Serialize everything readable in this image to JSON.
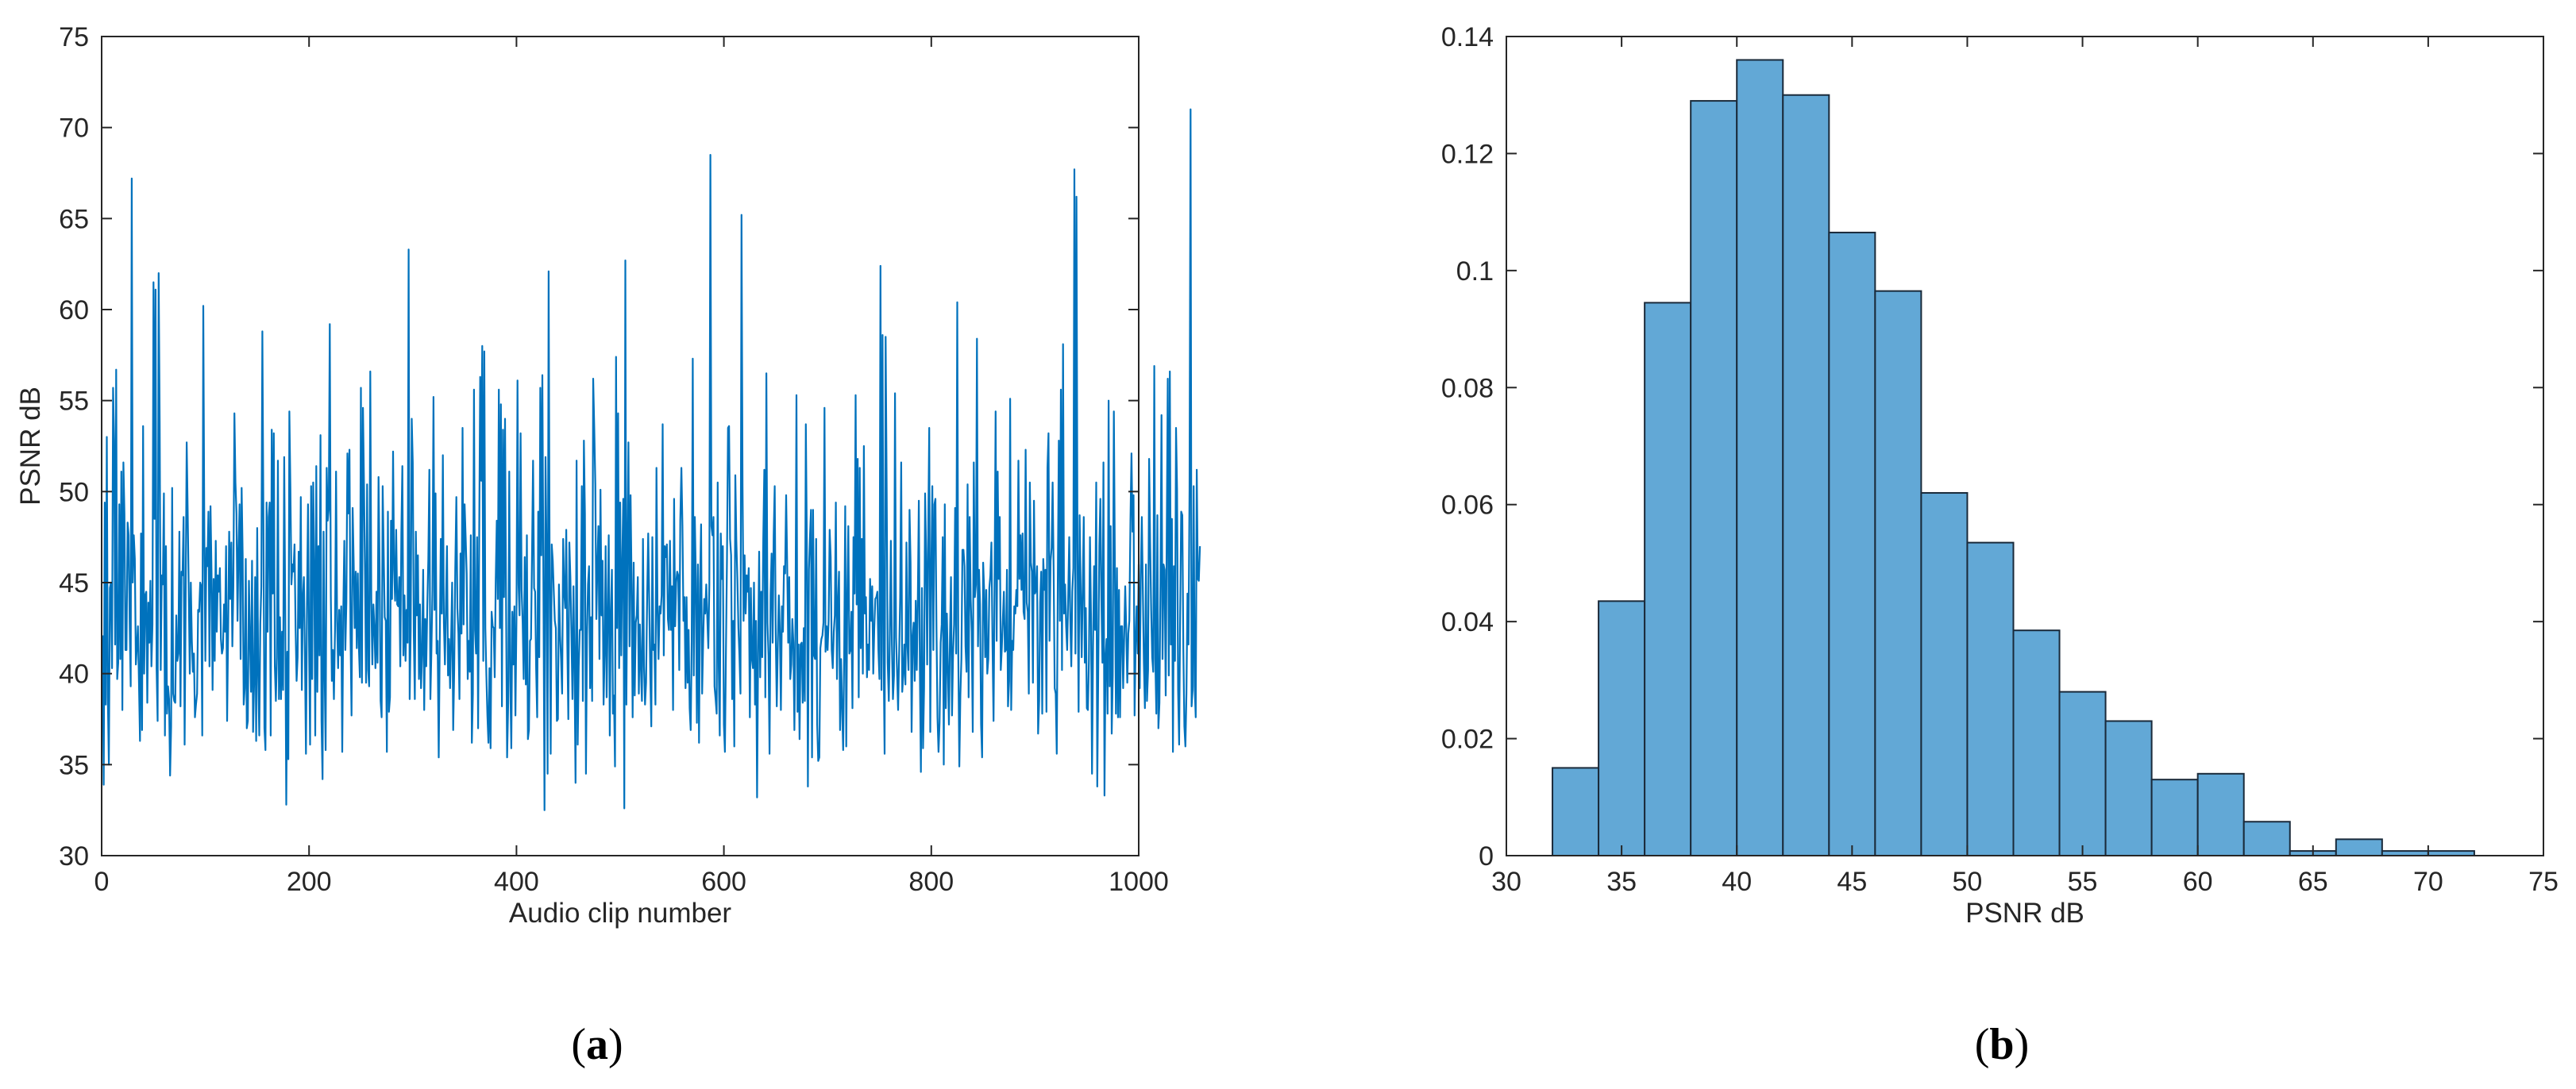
{
  "colors": {
    "line": "#0072BD",
    "bar_fill": "#62A8D6",
    "bar_edge": "#1A2A3A",
    "axes": "#262626",
    "background": "#ffffff"
  },
  "chart_data": [
    {
      "type": "line",
      "panel_label": "(a)",
      "panel_letter": "a",
      "title": "",
      "xlabel": "Audio clip number",
      "ylabel": "PSNR dB",
      "xlim": [
        0,
        1000
      ],
      "ylim": [
        30,
        75
      ],
      "xticks": [
        0,
        200,
        400,
        600,
        800,
        1000
      ],
      "yticks": [
        30,
        35,
        40,
        45,
        50,
        55,
        60,
        65,
        70,
        75
      ],
      "grid": false,
      "legend": "none",
      "x_start": 1,
      "x_step": 1,
      "notable_points": [
        {
          "x": 28,
          "y": 67.2
        },
        {
          "x": 175,
          "y": 32.8
        },
        {
          "x": 298,
          "y": 63.3
        },
        {
          "x": 421,
          "y": 32.5
        },
        {
          "x": 555,
          "y": 68.5
        },
        {
          "x": 877,
          "y": 67.7
        },
        {
          "x": 972,
          "y": 71.0
        }
      ],
      "y": [
        42.1,
        33.9,
        49.4,
        38.3,
        53,
        38.7,
        35,
        44.7,
        45,
        40.3,
        55.7,
        52.8,
        41.6,
        56.7,
        39.7,
        40.6,
        49.3,
        40.8,
        51.1,
        38,
        51.6,
        48.8,
        41.3,
        41.3,
        48.3,
        47.6,
        42.8,
        39.3,
        67.2,
        45,
        47.6,
        46.3,
        40.5,
        41.5,
        42.6,
        39.5,
        36.3,
        47.7,
        36.9,
        53.6,
        40,
        44.3,
        44.5,
        38.4,
        43.9,
        41.7,
        45.1,
        40.4,
        42.7,
        61.5,
        48.5,
        61.1,
        40.3,
        37.4,
        62,
        53.7,
        40.2,
        45.4,
        44.9,
        49.9,
        36.6,
        47,
        37.8,
        39.3,
        38.6,
        34.4,
        37.1,
        50.2,
        38.9,
        38.5,
        38.4,
        43.2,
        40.7,
        41.1,
        47.8,
        38.2,
        45.6,
        45.4,
        48.6,
        36.1,
        44.1,
        52.7,
        48.8,
        44.5,
        40,
        45,
        41.8,
        40.1,
        41.1,
        37.6,
        38.3,
        38.9,
        43.5,
        43.4,
        45,
        44.8,
        36.6,
        60.2,
        47.9,
        40.7,
        46.9,
        45.9,
        48.9,
        40.4,
        49.2,
        45.5,
        39.1,
        45.2,
        40.7,
        47.3,
        42.3,
        45.4,
        44.5,
        45.8,
        41.9,
        41.1,
        41.4,
        43.8,
        42.3,
        47,
        37.4,
        42.4,
        47.8,
        44.1,
        47.2,
        41.5,
        44.9,
        54.3,
        50.5,
        48.8,
        42.9,
        46.8,
        49.3,
        40.8,
        50.2,
        46.5,
        38.3,
        39.2,
        46.3,
        37,
        37.4,
        45.1,
        41.9,
        39,
        46.2,
        36.8,
        39.5,
        45.3,
        36.3,
        48,
        39.9,
        36.6,
        42.7,
        44.8,
        58.8,
        48.6,
        37,
        35.8,
        49.4,
        42.3,
        48.6,
        49.4,
        36.6,
        53.4,
        44.4,
        53.2,
        40.4,
        38.5,
        40.9,
        51.7,
        38.6,
        43.1,
        38.6,
        42.3,
        39.1,
        51.9,
        43.5,
        32.8,
        41.2,
        35.3,
        54.4,
        50.2,
        44.9,
        46,
        45.6,
        47.1,
        42.6,
        39.6,
        40.9,
        46.7,
        42.5,
        49.7,
        39.1,
        44.2,
        45.3,
        41,
        35.6,
        43.8,
        49.3,
        41.7,
        36.1,
        50.3,
        39.7,
        50.5,
        46,
        36.6,
        51.4,
        39,
        47,
        41,
        53.1,
        37.4,
        34.2,
        47.8,
        40.1,
        35.8,
        51.3,
        48.4,
        49,
        59.2,
        44.3,
        39.6,
        41.3,
        38.6,
        42.4,
        51.1,
        42.9,
        40.3,
        43.5,
        41,
        43.7,
        35.7,
        43.4,
        47.3,
        41.3,
        43.9,
        52.1,
        48.8,
        52.3,
        42.2,
        37.7,
        49.1,
        46.1,
        42.5,
        45.6,
        41.4,
        45.5,
        41.5,
        39.8,
        55.7,
        39.5,
        54.6,
        50.3,
        45.4,
        39.5,
        50.4,
        40.2,
        39.3,
        56.6,
        44.1,
        40.5,
        43.8,
        42.5,
        40.3,
        44.5,
        40.6,
        50.8,
        45.9,
        38.5,
        37.6,
        50.3,
        46.6,
        43.1,
        42.9,
        35.7,
        48.9,
        37.9,
        38.7,
        48.4,
        44.1,
        52.2,
        45.7,
        44,
        47.9,
        43.8,
        43.7,
        45.3,
        40.4,
        47.7,
        51.4,
        41,
        44.3,
        40.7,
        43.5,
        41.7,
        63.3,
        38.6,
        42.4,
        54,
        51.6,
        42.1,
        38.6,
        47.8,
        43.2,
        46.5,
        39.7,
        43.8,
        39.2,
        41.2,
        45.7,
        38,
        43,
        40.4,
        43.7,
        46.3,
        51.2,
        38.6,
        41.3,
        44.6,
        55.2,
        43.5,
        49.9,
        41.1,
        41.8,
        35.4,
        41.8,
        47.4,
        43.3,
        52,
        42.8,
        40.5,
        43.8,
        47,
        39.9,
        41.9,
        39.2,
        41.9,
        45,
        36.9,
        40.2,
        45.7,
        49.7,
        43.6,
        42.2,
        38.6,
        46.6,
        42.2,
        53.5,
        42.7,
        49.3,
        47.5,
        45.5,
        39.7,
        41.8,
        40.1,
        47.6,
        36.2,
        38.9,
        55.6,
        42.4,
        41.1,
        47.5,
        37,
        47.1,
        56.3,
        50.6,
        58,
        40.7,
        57.7,
        42.5,
        39.9,
        37.7,
        36.2,
        40.3,
        35.9,
        43.4,
        42.6,
        42.5,
        39.8,
        45.2,
        48.4,
        44.1,
        55.6,
        42.5,
        54.8,
        38.2,
        53.4,
        44.2,
        54,
        43.8,
        35.4,
        38.4,
        51.1,
        39.7,
        35.9,
        43.4,
        40.5,
        43.7,
        37.7,
        43,
        56.1,
        44.9,
        43.2,
        53.2,
        44.6,
        42.8,
        39.7,
        46.4,
        39.4,
        47.6,
        36.4,
        36.9,
        41.8,
        41.9,
        46.6,
        51.7,
        44.7,
        44.5,
        40.2,
        37.6,
        48.9,
        40.9,
        55.7,
        46.5,
        56.4,
        44.4,
        32.5,
        51.9,
        46.5,
        34.5,
        62.1,
        45.3,
        35.6,
        47.1,
        46.2,
        44.5,
        42.9,
        42.5,
        37.4,
        37.5,
        44.9,
        42.1,
        40.8,
        38.9,
        47.4,
        44.5,
        43.6,
        47.9,
        41.7,
        37.5,
        47.2,
        45.3,
        42.3,
        38.6,
        44.8,
        40.2,
        34,
        51.7,
        36.1,
        40.4,
        42.4,
        42.4,
        50.3,
        38.5,
        52.8,
        48.8,
        34.5,
        42.1,
        44.9,
        45.9,
        39.2,
        43.1,
        38.5,
        56.2,
        53.4,
        50.4,
        43,
        45.9,
        48.1,
        40.8,
        50.1,
        43.2,
        46.2,
        38.3,
        41,
        47,
        38.7,
        43.2,
        47.6,
        36.6,
        43.3,
        45.7,
        37.8,
        38.8,
        34.9,
        57.4,
        42.5,
        54.3,
        40.3,
        49.4,
        41,
        46.1,
        49.6,
        32.6,
        62.7,
        38.3,
        46.5,
        52.7,
        41.5,
        49.8,
        44.9,
        37.6,
        46.1,
        38.8,
        42.8,
        43.2,
        45.3,
        38.9,
        42.7,
        40.3,
        38.5,
        47.4,
        40.4,
        38.3,
        39.5,
        44.3,
        47.7,
        43.9,
        40,
        37.1,
        47.5,
        41.3,
        41.6,
        38.3,
        51.3,
        43.6,
        40.8,
        43.7,
        43.3,
        44.3,
        53.7,
        41,
        47,
        46.4,
        47.1,
        43,
        42.4,
        47.3,
        42.4,
        44.8,
        38,
        49.6,
        42.6,
        45,
        45.6,
        45.4,
        40.2,
        48.4,
        51.3,
        48.1,
        42.9,
        44.2,
        39.2,
        44.2,
        39.5,
        42.4,
        38.1,
        36.9,
        41.8,
        57.3,
        39.9,
        48.6,
        45.2,
        37.3,
        46,
        36.2,
        44.9,
        48.2,
        38.9,
        41.8,
        44.1,
        43.3,
        44.9,
        43.1,
        41.4,
        44.9,
        68.5,
        48.1,
        47.6,
        48.6,
        39.3,
        38.6,
        37.8,
        50.5,
        40.4,
        36.6,
        47.7,
        45.2,
        47,
        37.2,
        35.7,
        41.3,
        46.3,
        53.5,
        53.6,
        47.4,
        46.5,
        38.6,
        42.9,
        36,
        50.9,
        47.3,
        45.2,
        42.5,
        41,
        38.9,
        65.2,
        50.3,
        42.9,
        46.5,
        43.3,
        45.4,
        44.5,
        45.8,
        37.6,
        44.7,
        40.8,
        40.3,
        45,
        38.3,
        42.9,
        33.2,
        41.1,
        46.7,
        39.8,
        44.5,
        40.9,
        47.4,
        51.2,
        38.7,
        56.5,
        42.8,
        41,
        35.6,
        44.3,
        46.6,
        41.7,
        47.6,
        50.3,
        42.2,
        38.2,
        41.6,
        44.3,
        42.3,
        38,
        43.7,
        42.3,
        45.9,
        45.5,
        49.8,
        46,
        41.7,
        45.3,
        39.7,
        40.5,
        43,
        41.7,
        36.9,
        42.5,
        55.3,
        37.9,
        41.6,
        36.4,
        41.6,
        41.7,
        38.4,
        42.5,
        38.5,
        53.7,
        47.1,
        33.8,
        45.7,
        47.5,
        49,
        35.4,
        49,
        41,
        40.8,
        47.4,
        37.2,
        35.2,
        35.4,
        41.4,
        41.9,
        42.1,
        42.8,
        54.6,
        41.2,
        42.6,
        41.3,
        42.9,
        47.9,
        46.4,
        41.3,
        40.3,
        42.3,
        43.2,
        49.4,
        39.7,
        43.9,
        45.6,
        36.9,
        40.8,
        38.1,
        35.8,
        41.1,
        49.2,
        36,
        44.2,
        48.1,
        41.1,
        41.3,
        43.4,
        38.1,
        47.5,
        44.4,
        55.3,
        43.8,
        51.8,
        38.7,
        51.3,
        41.4,
        47.4,
        40,
        52.5,
        43.3,
        44.2,
        39.8,
        41.6,
        40.2,
        45.2,
        42.9,
        44.8,
        40,
        42.5,
        44.1,
        44.2,
        44.5,
        41.3,
        39.7,
        62.4,
        39.1,
        58.6,
        41.2,
        35.6,
        58.5,
        50.2,
        40.6,
        38.5,
        42.2,
        47.3,
        41.6,
        38.6,
        39.9,
        55.4,
        42,
        40.1,
        38,
        41.1,
        44.2,
        51.6,
        39,
        39.9,
        41.6,
        39.4,
        47.2,
        41.5,
        40.2,
        49,
        46.1,
        36.8,
        42,
        42.8,
        39.6,
        44,
        40.2,
        44,
        49.5,
        40.2,
        34.6,
        44.7,
        35.9,
        39.2,
        49.9,
        46.6,
        40.5,
        47.6,
        53.5,
        36.8,
        45.7,
        50.3,
        41.3,
        49.3,
        49.6,
        42.6,
        37.6,
        35.7,
        37.3,
        41.7,
        42.7,
        47.5,
        35,
        49.3,
        38.1,
        43.3,
        40.3,
        37.2,
        42,
        45.3,
        37.7,
        41.1,
        42.7,
        49.1,
        41.1,
        60.4,
        41.1,
        34.9,
        38.8,
        40.8,
        46.8,
        46.8,
        45.9,
        41.5,
        40.1,
        50.4,
        38.7,
        48.6,
        44.1,
        42.3,
        36.8,
        51.6,
        44.2,
        44.9,
        58.4,
        41.5,
        45.7,
        43.8,
        37.2,
        35.4,
        46.1,
        44.5,
        40.9,
        44.6,
        40,
        40.8,
        44.7,
        45.4,
        47.2,
        41.6,
        37.4,
        45.3,
        54.4,
        41.8,
        51.1,
        45.2,
        48.6,
        40.2,
        41.4,
        43,
        44.5,
        41.2,
        41.3,
        45.7,
        38.2,
        39.6,
        55.1,
        38,
        41.8,
        41.3,
        43.7,
        43.3,
        44.6,
        43.7,
        51.7,
        45.2,
        47.6,
        44.6,
        47.7,
        43.4,
        43,
        52.3,
        43.9,
        43.4,
        38.9,
        50.5,
        46.1,
        45.6,
        39.5,
        49.5,
        44.4,
        44.6,
        45.9,
        36.7,
        38.5,
        43.9,
        45.6,
        37.8,
        46.3,
        44.6,
        45.7,
        37.9,
        51.3,
        53.2,
        41.8,
        46.2,
        46.9,
        50.5,
        45.5,
        39.2,
        38.9,
        35.6,
        45.1,
        52.8,
        42.9,
        55.6,
        40.2,
        58.1,
        43.3,
        44.9,
        42.6,
        41.3,
        44.2,
        47.5,
        43.1,
        40.4,
        44.5,
        45.8,
        67.7,
        41.1,
        66.2,
        46.9,
        37.9,
        48.7,
        44.8,
        40.9,
        44.7,
        48.6,
        40.6,
        43.6,
        38.1,
        38,
        40.7,
        47.5,
        43.3,
        34.5,
        41.5,
        45.9,
        42.4,
        50.5,
        33.8,
        40.4,
        47,
        49.6,
        44.1,
        40.6,
        51.6,
        33.3,
        40.8,
        41.9,
        37.8,
        55,
        39.3,
        48.1,
        36.7,
        39.9,
        54.4,
        46,
        37.8,
        45.8,
        37.6,
        44.6,
        37.6,
        42.6,
        42.6,
        39.2,
        42,
        44.8,
        42.4,
        39.5,
        42.2,
        42.9,
        48.4,
        52.1,
        47.8,
        49.8,
        37.7,
        41.7,
        43.7,
        41.1,
        46,
        39.2,
        45.4,
        48.6,
        44.6,
        40.6,
        38.1,
        46,
        38.5,
        40.2,
        51.8,
        47.2,
        43.5,
        40.9,
        40.1,
        56.9,
        40.8,
        37.8,
        48.7,
        37,
        38.4,
        45,
        54.2,
        40.8,
        46,
        45.7,
        38.8,
        47.6,
        56.2,
        39.9,
        56.6,
        41.6,
        48.5,
        35.7,
        45.9,
        40.7,
        53.5,
        50.1,
        39.1,
        36.1,
        43.2,
        48.9,
        48.7,
        41.4,
        37.1,
        36,
        38.9,
        44.4,
        41.6,
        50.1,
        71.0,
        38.2,
        39.1,
        50.3,
        39.3,
        37.6,
        51.2,
        45.2,
        45.1,
        47
      ]
    },
    {
      "type": "bar",
      "subtype": "histogram",
      "panel_label": "(b)",
      "panel_letter": "b",
      "title": "",
      "xlabel": "PSNR dB",
      "ylabel": "",
      "xlim": [
        30,
        75
      ],
      "ylim": [
        0,
        0.14
      ],
      "xticks": [
        30,
        35,
        40,
        45,
        50,
        55,
        60,
        65,
        70,
        75
      ],
      "yticks": [
        "0",
        "0.02",
        "0.04",
        "0.06",
        "0.08",
        "0.1",
        "0.12",
        "0.14"
      ],
      "grid": false,
      "legend": "none",
      "bin_width": 2,
      "bin_edges": [
        32,
        34,
        36,
        38,
        40,
        42,
        44,
        46,
        48,
        50,
        52,
        54,
        56,
        58,
        60,
        62,
        64,
        66,
        68,
        70,
        72
      ],
      "values": [
        0.015,
        0.0435,
        0.0945,
        0.129,
        0.136,
        0.13,
        0.1065,
        0.0965,
        0.062,
        0.0535,
        0.0385,
        0.028,
        0.023,
        0.013,
        0.014,
        0.0058,
        0.0008,
        0.0028,
        0.0008,
        0.0008
      ]
    }
  ]
}
